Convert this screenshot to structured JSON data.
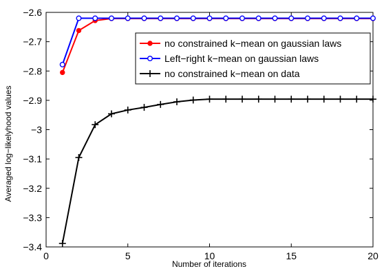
{
  "chart_data": {
    "type": "line",
    "title": "",
    "xlabel": "Number of iterations",
    "ylabel": "Averaged log−likelyhood values",
    "xlim": [
      0,
      20
    ],
    "ylim": [
      -3.4,
      -2.6
    ],
    "xticks": [
      0,
      5,
      10,
      15,
      20
    ],
    "xtick_labels": [
      "0",
      "5",
      "10",
      "15",
      "20"
    ],
    "yticks": [
      -3.4,
      -3.3,
      -3.2,
      -3.1,
      -3.0,
      -2.9,
      -2.8,
      -2.7,
      -2.6
    ],
    "ytick_labels": [
      "−3.4",
      "−3.3",
      "−3.2",
      "−3.1",
      "−3",
      "−2.9",
      "−2.8",
      "−2.7",
      "−2.6"
    ],
    "grid": false,
    "legend_position": "top-right",
    "x": [
      1,
      2,
      3,
      4,
      5,
      6,
      7,
      8,
      9,
      10,
      11,
      12,
      13,
      14,
      15,
      16,
      17,
      18,
      19,
      20
    ],
    "series": [
      {
        "name": "no constrained k−mean on gaussian laws",
        "color": "#ff0000",
        "marker": "dot",
        "values": [
          -2.805,
          -2.662,
          -2.628,
          -2.621,
          -2.621,
          -2.621,
          -2.621,
          -2.621,
          -2.621,
          -2.621,
          -2.621,
          -2.621,
          -2.621,
          -2.621,
          -2.621,
          -2.621,
          -2.621,
          -2.621,
          -2.621,
          -2.621
        ]
      },
      {
        "name": "Left−right k−mean on gaussian laws",
        "color": "#0000ff",
        "marker": "circle",
        "values": [
          -2.778,
          -2.62,
          -2.62,
          -2.62,
          -2.62,
          -2.62,
          -2.62,
          -2.62,
          -2.62,
          -2.62,
          -2.62,
          -2.62,
          -2.62,
          -2.62,
          -2.62,
          -2.62,
          -2.62,
          -2.62,
          -2.62,
          -2.62
        ]
      },
      {
        "name": "no constrained k−mean on data",
        "color": "#000000",
        "marker": "plus",
        "values": [
          -3.388,
          -3.095,
          -2.983,
          -2.946,
          -2.933,
          -2.924,
          -2.914,
          -2.905,
          -2.899,
          -2.896,
          -2.896,
          -2.896,
          -2.896,
          -2.896,
          -2.896,
          -2.896,
          -2.896,
          -2.896,
          -2.896,
          -2.896
        ]
      }
    ]
  }
}
